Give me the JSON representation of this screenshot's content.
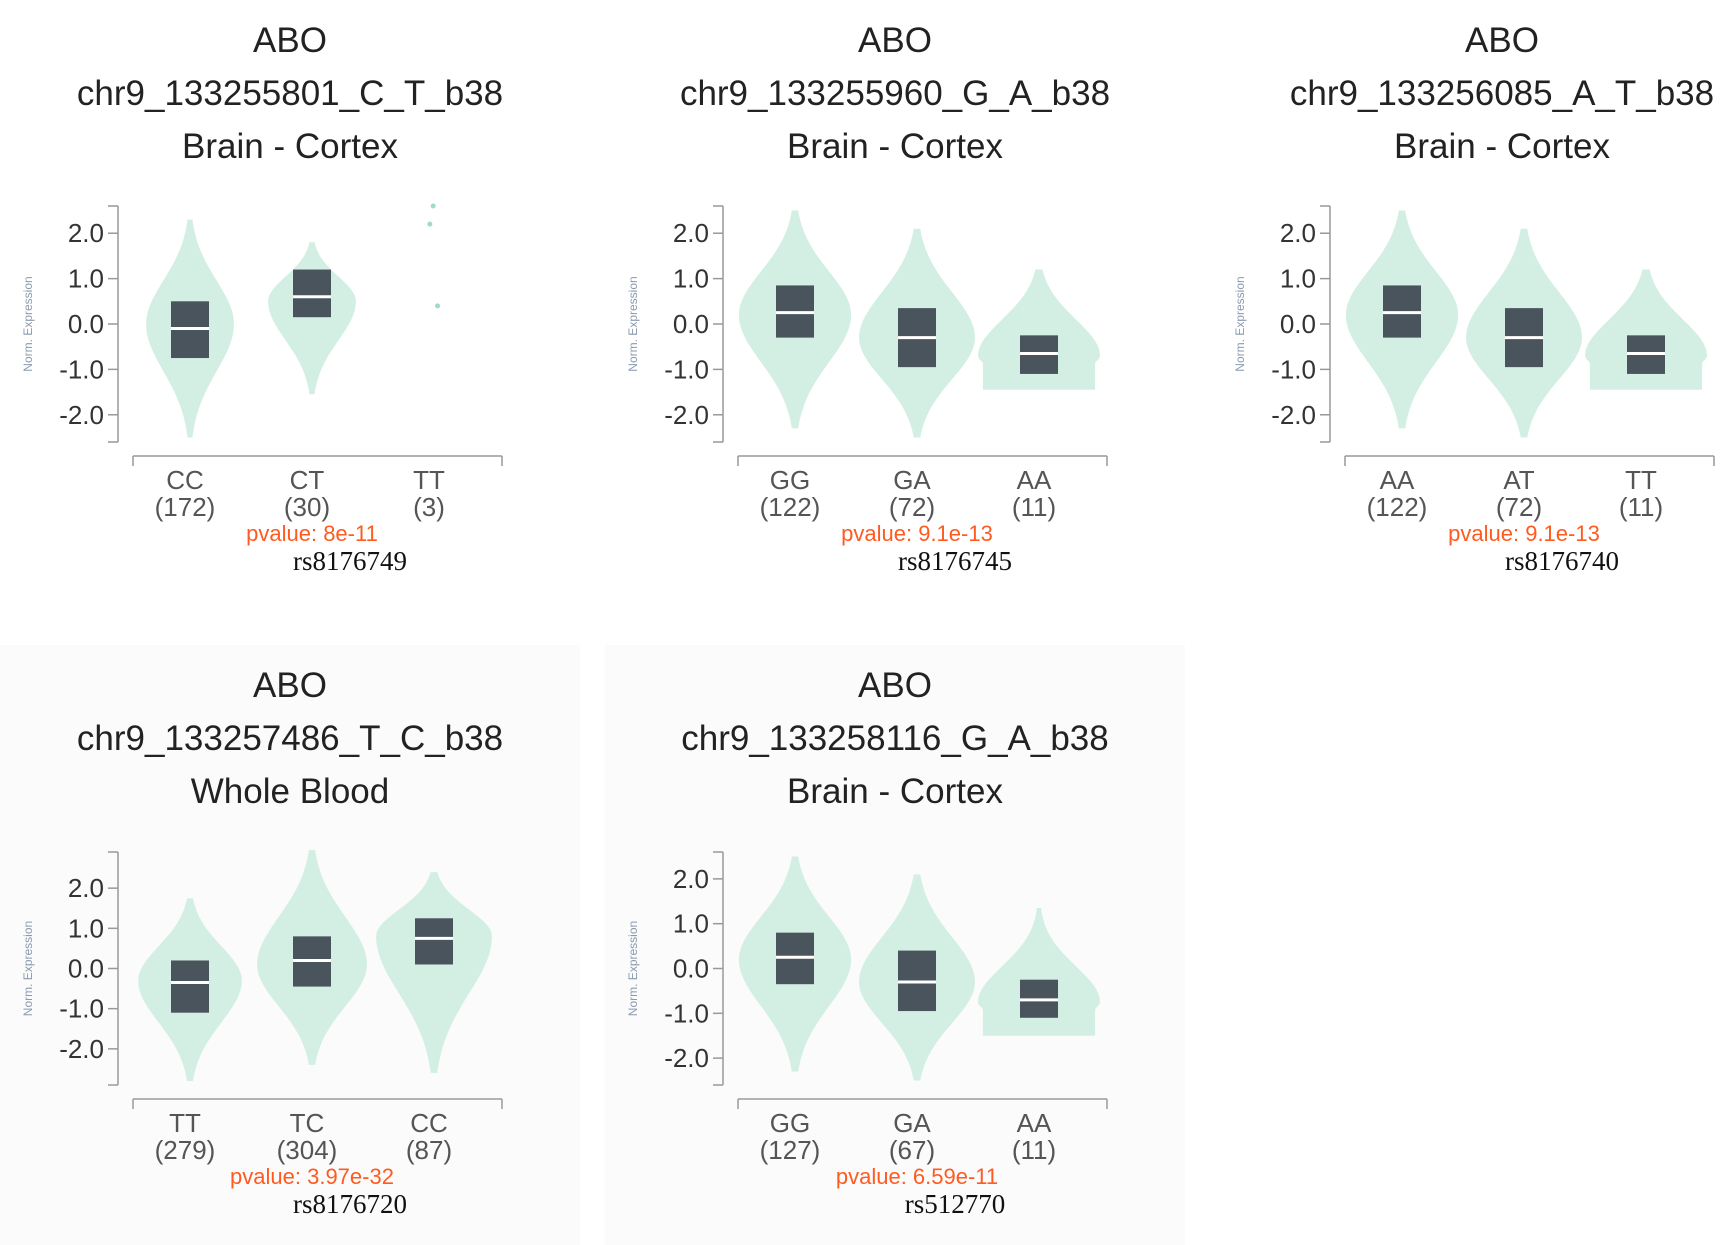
{
  "chart_data": [
    {
      "type": "violin",
      "gene": "ABO",
      "variant": "chr9_133255801_C_T_b38",
      "tissue": "Brain - Cortex",
      "rsid": "rs8176749",
      "pvalue": "pvalue: 8e-11",
      "ylabel": "Norm. Expression",
      "ylim": [
        -2.6,
        2.6
      ],
      "yticks": [
        "2.0",
        "1.0",
        "0.0",
        "-1.0",
        "-2.0"
      ],
      "groups": [
        {
          "genotype": "CC",
          "count": "(172)",
          "median": -0.1,
          "q1": -0.75,
          "q3": 0.5,
          "vmin": -2.5,
          "vmax": 2.3,
          "peak": 0.0,
          "maxw": 0.72,
          "shape": "violin"
        },
        {
          "genotype": "CT",
          "count": "(30)",
          "median": 0.6,
          "q1": 0.15,
          "q3": 1.2,
          "vmin": -1.55,
          "vmax": 1.8,
          "peak": 0.5,
          "maxw": 0.72,
          "shape": "violin"
        },
        {
          "genotype": "TT",
          "count": "(3)",
          "points": [
            2.6,
            2.2,
            0.4
          ],
          "shape": "points"
        }
      ]
    },
    {
      "type": "violin",
      "gene": "ABO",
      "variant": "chr9_133255960_G_A_b38",
      "tissue": "Brain - Cortex",
      "rsid": "rs8176745",
      "pvalue": "pvalue: 9.1e-13",
      "ylabel": "Norm. Expression",
      "ylim": [
        -2.6,
        2.6
      ],
      "yticks": [
        "2.0",
        "1.0",
        "0.0",
        "-1.0",
        "-2.0"
      ],
      "groups": [
        {
          "genotype": "GG",
          "count": "(122)",
          "median": 0.25,
          "q1": -0.3,
          "q3": 0.85,
          "vmin": -2.3,
          "vmax": 2.5,
          "peak": 0.2,
          "maxw": 0.92,
          "shape": "violin"
        },
        {
          "genotype": "GA",
          "count": "(72)",
          "median": -0.3,
          "q1": -0.95,
          "q3": 0.35,
          "vmin": -2.5,
          "vmax": 2.1,
          "peak": -0.3,
          "maxw": 0.95,
          "shape": "violin"
        },
        {
          "genotype": "AA",
          "count": "(11)",
          "median": -0.65,
          "q1": -1.1,
          "q3": -0.25,
          "vmin": -1.45,
          "vmax": 1.2,
          "peak": -0.7,
          "maxw": 1.0,
          "shape": "flat"
        }
      ]
    },
    {
      "type": "violin",
      "gene": "ABO",
      "variant": "chr9_133256085_A_T_b38",
      "tissue": "Brain - Cortex",
      "rsid": "rs8176740",
      "pvalue": "pvalue: 9.1e-13",
      "ylabel": "Norm. Expression",
      "ylim": [
        -2.6,
        2.6
      ],
      "yticks": [
        "2.0",
        "1.0",
        "0.0",
        "-1.0",
        "-2.0"
      ],
      "groups": [
        {
          "genotype": "AA",
          "count": "(122)",
          "median": 0.25,
          "q1": -0.3,
          "q3": 0.85,
          "vmin": -2.3,
          "vmax": 2.5,
          "peak": 0.2,
          "maxw": 0.92,
          "shape": "violin"
        },
        {
          "genotype": "AT",
          "count": "(72)",
          "median": -0.3,
          "q1": -0.95,
          "q3": 0.35,
          "vmin": -2.5,
          "vmax": 2.1,
          "peak": -0.3,
          "maxw": 0.95,
          "shape": "violin"
        },
        {
          "genotype": "TT",
          "count": "(11)",
          "median": -0.65,
          "q1": -1.1,
          "q3": -0.25,
          "vmin": -1.45,
          "vmax": 1.2,
          "peak": -0.7,
          "maxw": 1.0,
          "shape": "flat"
        }
      ]
    },
    {
      "type": "violin",
      "gene": "ABO",
      "variant": "chr9_133257486_T_C_b38",
      "tissue": "Whole Blood",
      "rsid": "rs8176720",
      "pvalue": "pvalue: 3.97e-32",
      "ylabel": "Norm. Expression",
      "ylim": [
        -2.9,
        2.9
      ],
      "yticks": [
        "2.0",
        "1.0",
        "0.0",
        "-1.0",
        "-2.0"
      ],
      "groups": [
        {
          "genotype": "TT",
          "count": "(279)",
          "median": -0.35,
          "q1": -1.1,
          "q3": 0.2,
          "vmin": -2.8,
          "vmax": 1.75,
          "peak": -0.3,
          "maxw": 0.85,
          "shape": "violin"
        },
        {
          "genotype": "TC",
          "count": "(304)",
          "median": 0.2,
          "q1": -0.45,
          "q3": 0.8,
          "vmin": -2.4,
          "vmax": 2.95,
          "peak": 0.1,
          "maxw": 0.9,
          "shape": "violin"
        },
        {
          "genotype": "CC",
          "count": "(87)",
          "median": 0.75,
          "q1": 0.1,
          "q3": 1.25,
          "vmin": -2.6,
          "vmax": 2.4,
          "peak": 0.8,
          "maxw": 0.95,
          "shape": "violin"
        }
      ]
    },
    {
      "type": "violin",
      "gene": "ABO",
      "variant": "chr9_133258116_G_A_b38",
      "tissue": "Brain - Cortex",
      "rsid": "rs512770",
      "pvalue": "pvalue: 6.59e-11",
      "ylabel": "Norm. Expression",
      "ylim": [
        -2.6,
        2.6
      ],
      "yticks": [
        "2.0",
        "1.0",
        "0.0",
        "-1.0",
        "-2.0"
      ],
      "groups": [
        {
          "genotype": "GG",
          "count": "(127)",
          "median": 0.25,
          "q1": -0.35,
          "q3": 0.8,
          "vmin": -2.3,
          "vmax": 2.5,
          "peak": 0.2,
          "maxw": 0.92,
          "shape": "violin"
        },
        {
          "genotype": "GA",
          "count": "(67)",
          "median": -0.3,
          "q1": -0.95,
          "q3": 0.4,
          "vmin": -2.5,
          "vmax": 2.1,
          "peak": -0.3,
          "maxw": 0.95,
          "shape": "violin"
        },
        {
          "genotype": "AA",
          "count": "(11)",
          "median": -0.7,
          "q1": -1.1,
          "q3": -0.25,
          "vmin": -1.5,
          "vmax": 1.35,
          "peak": -0.75,
          "maxw": 1.0,
          "shape": "flat"
        }
      ]
    }
  ],
  "colors": {
    "violin": "#d3efe3",
    "box": "#4a545d",
    "median": "#ffffff",
    "axis": "#999999",
    "tick_text": "#333333",
    "geno_text": "#555555",
    "pvalue": "#ff5a1f",
    "ylabel": "#8a9ab0"
  }
}
